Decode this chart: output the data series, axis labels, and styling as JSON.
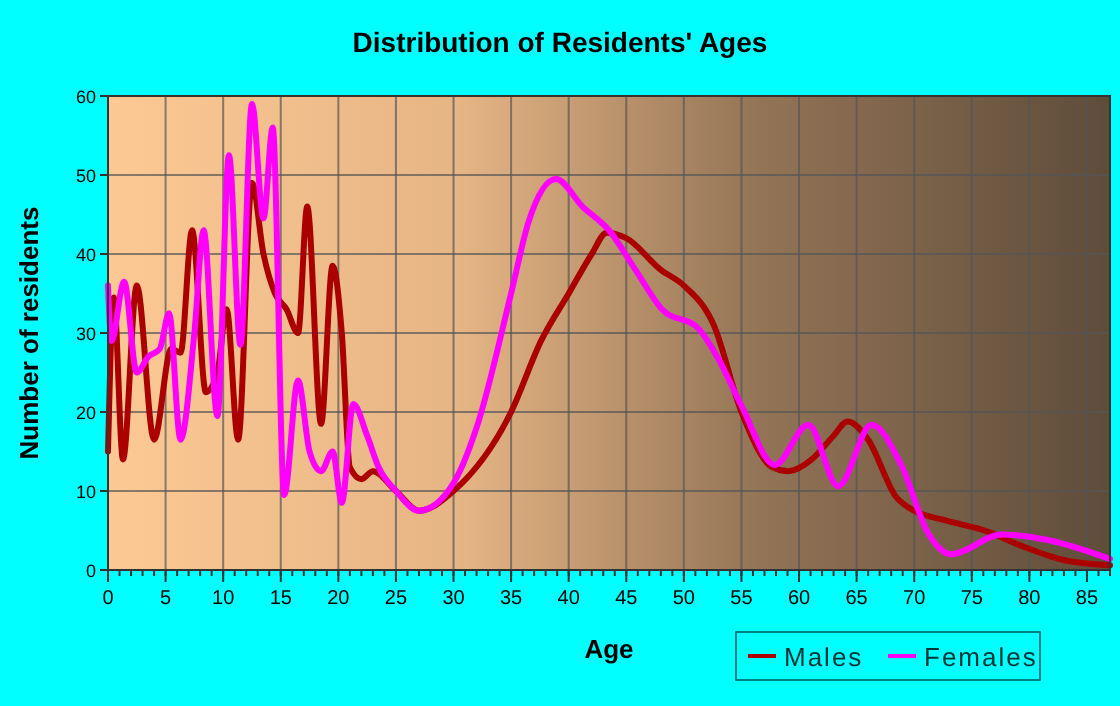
{
  "chart_data": {
    "type": "line",
    "title": "Distribution of Residents' Ages",
    "xlabel": "Age",
    "ylabel": "Number of residents",
    "xlim": [
      0,
      87
    ],
    "xticks": [
      0,
      5,
      10,
      15,
      20,
      25,
      30,
      35,
      40,
      45,
      50,
      55,
      60,
      65,
      70,
      75,
      80,
      85
    ],
    "ylim": [
      0,
      60
    ],
    "yticks": [
      0,
      10,
      20,
      30,
      40,
      50,
      60
    ],
    "grid": true,
    "legend": "bottom",
    "line_style": "solid",
    "marker": "none",
    "series": [
      {
        "name": "Males",
        "color": "#aa0000",
        "x": [
          0,
          0.5,
          1.3,
          2.5,
          4,
          5.5,
          6.3,
          7.3,
          8.5,
          9.5,
          10.3,
          11.3,
          12.5,
          13.5,
          14.5,
          15.5,
          16.5,
          17.3,
          18.5,
          19.5,
          20.3,
          21,
          22,
          23,
          25,
          27,
          30,
          35,
          37.6,
          40,
          42,
          43.3,
          45,
          48,
          50,
          52.6,
          55,
          57.7,
          59.1,
          61.1,
          63,
          64.2,
          66,
          68.4,
          70,
          72.4,
          76.5,
          79.4,
          82.9,
          87
        ],
        "values": [
          15,
          34.5,
          14,
          36,
          16.5,
          28,
          27.5,
          43,
          22.5,
          25,
          33,
          16.5,
          49,
          40,
          35,
          33,
          30,
          46,
          18.5,
          38.5,
          30,
          13,
          11.5,
          12.5,
          10,
          7.5,
          10,
          20,
          29,
          35,
          40,
          42.7,
          42,
          38,
          36,
          31,
          20,
          13,
          12.5,
          14,
          17,
          18.8,
          16.5,
          9.3,
          7.5,
          6.4,
          4.8,
          3,
          1.3,
          0.6
        ]
      },
      {
        "name": "Females",
        "color": "#ff00ff",
        "x": [
          0,
          0.3,
          1.4,
          2.5,
          3.5,
          4.5,
          5.3,
          6.3,
          7.5,
          8.3,
          9.5,
          10.5,
          11.5,
          12.5,
          13.5,
          14.3,
          15.3,
          16.5,
          17.5,
          18.5,
          19.5,
          20.3,
          21.3,
          22.5,
          23.5,
          25,
          27,
          30,
          32,
          35,
          36.5,
          38.9,
          41.2,
          43.5,
          45.8,
          48.1,
          51.3,
          53,
          55,
          57.9,
          60.8,
          63.4,
          66.3,
          68.9,
          71.2,
          73.2,
          77.6,
          81.6,
          87
        ],
        "values": [
          36,
          29,
          36.5,
          25,
          27,
          28,
          32.5,
          16.5,
          30,
          43,
          19.5,
          52.5,
          28.5,
          59,
          44.5,
          56,
          9.5,
          24,
          15,
          12.5,
          15,
          8.5,
          21,
          17,
          13,
          10,
          7.5,
          11,
          18,
          35,
          44,
          49.5,
          46,
          43,
          38,
          33,
          30.5,
          26.7,
          20.8,
          13.3,
          18.4,
          10.6,
          18.4,
          13.2,
          4.7,
          2,
          4.5,
          3.8,
          1.4
        ]
      }
    ]
  }
}
